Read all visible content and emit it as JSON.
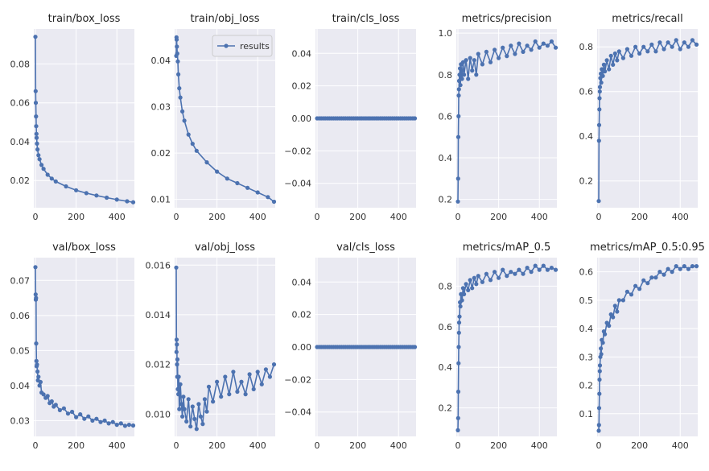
{
  "chart_data": [
    {
      "type": "line",
      "title": "train/box_loss",
      "xlim": [
        -8,
        486
      ],
      "ylim": [
        0.006,
        0.098
      ],
      "xticks": [
        "0",
        "200",
        "400"
      ],
      "xtick_values": [
        0,
        200,
        400
      ],
      "yticks": [
        "0.02",
        "0.04",
        "0.06",
        "0.08"
      ],
      "ytick_values": [
        0.02,
        0.04,
        0.06,
        0.08
      ],
      "series": [
        {
          "x": [
            0,
            1,
            2,
            3,
            4,
            5,
            6,
            8,
            10,
            15,
            20,
            30,
            40,
            60,
            80,
            100,
            150,
            200,
            250,
            300,
            350,
            400,
            450,
            480
          ],
          "y": [
            0.094,
            0.066,
            0.06,
            0.053,
            0.048,
            0.044,
            0.042,
            0.039,
            0.036,
            0.033,
            0.031,
            0.028,
            0.026,
            0.023,
            0.021,
            0.0195,
            0.017,
            0.015,
            0.0135,
            0.0123,
            0.0112,
            0.0102,
            0.0093,
            0.0088
          ]
        }
      ]
    },
    {
      "type": "line",
      "title": "train/obj_loss",
      "xlim": [
        -8,
        486
      ],
      "ylim": [
        0.0082,
        0.0468
      ],
      "xticks": [
        "0",
        "200",
        "400"
      ],
      "xtick_values": [
        0,
        200,
        400
      ],
      "yticks": [
        "0.01",
        "0.02",
        "0.03",
        "0.04"
      ],
      "ytick_values": [
        0.01,
        0.02,
        0.03,
        0.04
      ],
      "legend": {
        "label": "results",
        "position": "upper right"
      },
      "series": [
        {
          "name": "results",
          "x": [
            0,
            1,
            2,
            3,
            5,
            8,
            10,
            15,
            20,
            30,
            40,
            60,
            80,
            100,
            150,
            200,
            250,
            300,
            350,
            400,
            450,
            480
          ],
          "y": [
            0.041,
            0.045,
            0.0445,
            0.043,
            0.0415,
            0.0398,
            0.037,
            0.034,
            0.032,
            0.029,
            0.027,
            0.024,
            0.022,
            0.0205,
            0.018,
            0.016,
            0.0145,
            0.0135,
            0.0125,
            0.0115,
            0.0105,
            0.0095
          ]
        }
      ]
    },
    {
      "type": "line",
      "title": "train/cls_loss",
      "xlim": [
        -8,
        486
      ],
      "ylim": [
        -0.055,
        0.055
      ],
      "xticks": [
        "0",
        "200",
        "400"
      ],
      "xtick_values": [
        0,
        200,
        400
      ],
      "yticks": [
        "−0.04",
        "−0.02",
        "0.00",
        "0.02",
        "0.04"
      ],
      "ytick_values": [
        -0.04,
        -0.02,
        0,
        0.02,
        0.04
      ],
      "series": [
        {
          "x": [
            0,
            480
          ],
          "y": [
            0,
            0
          ]
        }
      ]
    },
    {
      "type": "line",
      "title": "metrics/precision",
      "xlim": [
        -8,
        486
      ],
      "ylim": [
        0.16,
        1.02
      ],
      "xticks": [
        "0",
        "200",
        "400"
      ],
      "xtick_values": [
        0,
        200,
        400
      ],
      "yticks": [
        "0.2",
        "0.4",
        "0.6",
        "0.8",
        "1.0"
      ],
      "ytick_values": [
        0.2,
        0.4,
        0.6,
        0.8,
        1.0
      ],
      "series": [
        {
          "x": [
            0,
            1,
            2,
            3,
            4,
            5,
            6,
            8,
            10,
            12,
            15,
            20,
            25,
            30,
            40,
            50,
            60,
            70,
            80,
            90,
            100,
            120,
            140,
            160,
            180,
            200,
            220,
            240,
            260,
            280,
            300,
            320,
            340,
            360,
            380,
            400,
            420,
            440,
            460,
            480
          ],
          "y": [
            0.19,
            0.3,
            0.5,
            0.6,
            0.7,
            0.73,
            0.77,
            0.8,
            0.83,
            0.75,
            0.85,
            0.78,
            0.86,
            0.8,
            0.87,
            0.78,
            0.88,
            0.82,
            0.87,
            0.8,
            0.9,
            0.85,
            0.91,
            0.86,
            0.92,
            0.88,
            0.93,
            0.89,
            0.94,
            0.9,
            0.95,
            0.91,
            0.94,
            0.92,
            0.96,
            0.93,
            0.95,
            0.94,
            0.96,
            0.93
          ]
        }
      ]
    },
    {
      "type": "line",
      "title": "metrics/recall",
      "xlim": [
        -8,
        486
      ],
      "ylim": [
        0.08,
        0.88
      ],
      "xticks": [
        "0",
        "200",
        "400"
      ],
      "xtick_values": [
        0,
        200,
        400
      ],
      "yticks": [
        "0.2",
        "0.4",
        "0.6",
        "0.8"
      ],
      "ytick_values": [
        0.2,
        0.4,
        0.6,
        0.8
      ],
      "series": [
        {
          "x": [
            0,
            1,
            2,
            3,
            4,
            5,
            6,
            8,
            10,
            12,
            15,
            20,
            25,
            30,
            40,
            50,
            60,
            70,
            80,
            90,
            100,
            120,
            140,
            160,
            180,
            200,
            220,
            240,
            260,
            280,
            300,
            320,
            340,
            360,
            380,
            400,
            420,
            440,
            460,
            480
          ],
          "y": [
            0.11,
            0.38,
            0.45,
            0.52,
            0.57,
            0.6,
            0.62,
            0.66,
            0.68,
            0.64,
            0.7,
            0.67,
            0.72,
            0.69,
            0.74,
            0.7,
            0.76,
            0.72,
            0.77,
            0.74,
            0.78,
            0.75,
            0.79,
            0.76,
            0.8,
            0.77,
            0.8,
            0.78,
            0.81,
            0.78,
            0.82,
            0.79,
            0.82,
            0.8,
            0.83,
            0.79,
            0.82,
            0.8,
            0.83,
            0.81
          ]
        }
      ]
    },
    {
      "type": "line",
      "title": "val/box_loss",
      "xlim": [
        -8,
        486
      ],
      "ylim": [
        0.0255,
        0.0765
      ],
      "xticks": [
        "0",
        "200",
        "400"
      ],
      "xtick_values": [
        0,
        200,
        400
      ],
      "yticks": [
        "0.03",
        "0.04",
        "0.05",
        "0.06",
        "0.07"
      ],
      "ytick_values": [
        0.03,
        0.04,
        0.05,
        0.06,
        0.07
      ],
      "series": [
        {
          "x": [
            0,
            1,
            2,
            3,
            4,
            5,
            6,
            8,
            10,
            12,
            15,
            20,
            25,
            30,
            40,
            50,
            60,
            70,
            80,
            90,
            100,
            120,
            140,
            160,
            180,
            200,
            220,
            240,
            260,
            280,
            300,
            320,
            340,
            360,
            380,
            400,
            420,
            440,
            460,
            480
          ],
          "y": [
            0.0738,
            0.066,
            0.0645,
            0.065,
            0.052,
            0.047,
            0.0455,
            0.046,
            0.044,
            0.0415,
            0.0425,
            0.04,
            0.041,
            0.038,
            0.0375,
            0.0365,
            0.037,
            0.035,
            0.0355,
            0.034,
            0.0345,
            0.033,
            0.0335,
            0.032,
            0.0325,
            0.031,
            0.0318,
            0.0305,
            0.0312,
            0.03,
            0.0305,
            0.0296,
            0.03,
            0.0292,
            0.0296,
            0.0288,
            0.0292,
            0.0285,
            0.0288,
            0.0286
          ]
        }
      ]
    },
    {
      "type": "line",
      "title": "val/obj_loss",
      "xlim": [
        -8,
        486
      ],
      "ylim": [
        0.0091,
        0.0163
      ],
      "xticks": [
        "0",
        "200",
        "400"
      ],
      "xtick_values": [
        0,
        200,
        400
      ],
      "yticks": [
        "0.010",
        "0.012",
        "0.014",
        "0.016"
      ],
      "ytick_values": [
        0.01,
        0.012,
        0.014,
        0.016
      ],
      "series": [
        {
          "x": [
            0,
            1,
            2,
            3,
            4,
            5,
            6,
            8,
            10,
            12,
            15,
            20,
            25,
            30,
            35,
            40,
            50,
            60,
            70,
            80,
            90,
            100,
            110,
            120,
            130,
            140,
            150,
            160,
            180,
            200,
            220,
            240,
            260,
            280,
            300,
            320,
            340,
            360,
            380,
            400,
            420,
            440,
            460,
            480
          ],
          "y": [
            0.0159,
            0.0125,
            0.013,
            0.0128,
            0.012,
            0.0115,
            0.0122,
            0.011,
            0.0108,
            0.0115,
            0.0102,
            0.0112,
            0.0104,
            0.0099,
            0.0107,
            0.0102,
            0.0097,
            0.0106,
            0.0095,
            0.0103,
            0.0098,
            0.0094,
            0.0104,
            0.0099,
            0.0096,
            0.0106,
            0.0101,
            0.0111,
            0.0105,
            0.0113,
            0.0107,
            0.0115,
            0.0108,
            0.0117,
            0.0109,
            0.0113,
            0.0108,
            0.0116,
            0.011,
            0.0117,
            0.0112,
            0.0118,
            0.0115,
            0.012
          ]
        }
      ]
    },
    {
      "type": "line",
      "title": "val/cls_loss",
      "xlim": [
        -8,
        486
      ],
      "ylim": [
        -0.055,
        0.055
      ],
      "xticks": [
        "0",
        "200",
        "400"
      ],
      "xtick_values": [
        0,
        200,
        400
      ],
      "yticks": [
        "−0.04",
        "−0.02",
        "0.00",
        "0.02",
        "0.04"
      ],
      "ytick_values": [
        -0.04,
        -0.02,
        0,
        0.02,
        0.04
      ],
      "series": [
        {
          "x": [
            0,
            480
          ],
          "y": [
            0,
            0
          ]
        }
      ]
    },
    {
      "type": "line",
      "title": "metrics/mAP_0.5",
      "xlim": [
        -8,
        486
      ],
      "ylim": [
        0.06,
        0.94
      ],
      "xticks": [
        "0",
        "200",
        "400"
      ],
      "xtick_values": [
        0,
        200,
        400
      ],
      "yticks": [
        "0.2",
        "0.4",
        "0.6",
        "0.8"
      ],
      "ytick_values": [
        0.2,
        0.4,
        0.6,
        0.8
      ],
      "series": [
        {
          "x": [
            0,
            1,
            2,
            3,
            4,
            5,
            6,
            8,
            10,
            12,
            15,
            20,
            25,
            30,
            40,
            50,
            60,
            70,
            80,
            90,
            100,
            120,
            140,
            160,
            180,
            200,
            220,
            240,
            260,
            280,
            300,
            320,
            340,
            360,
            380,
            400,
            420,
            440,
            460,
            480
          ],
          "y": [
            0.09,
            0.15,
            0.28,
            0.42,
            0.5,
            0.57,
            0.62,
            0.65,
            0.72,
            0.7,
            0.76,
            0.73,
            0.79,
            0.76,
            0.81,
            0.78,
            0.83,
            0.79,
            0.84,
            0.81,
            0.85,
            0.82,
            0.86,
            0.83,
            0.87,
            0.84,
            0.88,
            0.85,
            0.87,
            0.86,
            0.88,
            0.86,
            0.89,
            0.87,
            0.9,
            0.88,
            0.9,
            0.88,
            0.89,
            0.88
          ]
        }
      ]
    },
    {
      "type": "line",
      "title": "metrics/mAP_0.5:0.95",
      "xlim": [
        -8,
        486
      ],
      "ylim": [
        0.02,
        0.65
      ],
      "xticks": [
        "0",
        "200",
        "400"
      ],
      "xtick_values": [
        0,
        200,
        400
      ],
      "yticks": [
        "0.1",
        "0.2",
        "0.3",
        "0.4",
        "0.5",
        "0.6"
      ],
      "ytick_values": [
        0.1,
        0.2,
        0.3,
        0.4,
        0.5,
        0.6
      ],
      "series": [
        {
          "x": [
            0,
            1,
            2,
            3,
            4,
            5,
            6,
            8,
            10,
            12,
            15,
            20,
            25,
            30,
            40,
            50,
            60,
            70,
            80,
            90,
            100,
            120,
            140,
            160,
            180,
            200,
            220,
            240,
            260,
            280,
            300,
            320,
            340,
            360,
            380,
            400,
            420,
            440,
            460,
            480
          ],
          "y": [
            0.04,
            0.06,
            0.12,
            0.17,
            0.22,
            0.25,
            0.27,
            0.3,
            0.33,
            0.31,
            0.36,
            0.35,
            0.39,
            0.38,
            0.42,
            0.41,
            0.45,
            0.44,
            0.48,
            0.46,
            0.5,
            0.5,
            0.53,
            0.52,
            0.55,
            0.54,
            0.57,
            0.56,
            0.58,
            0.58,
            0.6,
            0.59,
            0.61,
            0.6,
            0.62,
            0.61,
            0.62,
            0.61,
            0.62,
            0.62
          ]
        }
      ]
    }
  ],
  "style": {
    "plot_background": "#EAEAF2",
    "grid_color": "#FFFFFF",
    "line_color": "#4C72B0",
    "text_color": "#222222"
  }
}
